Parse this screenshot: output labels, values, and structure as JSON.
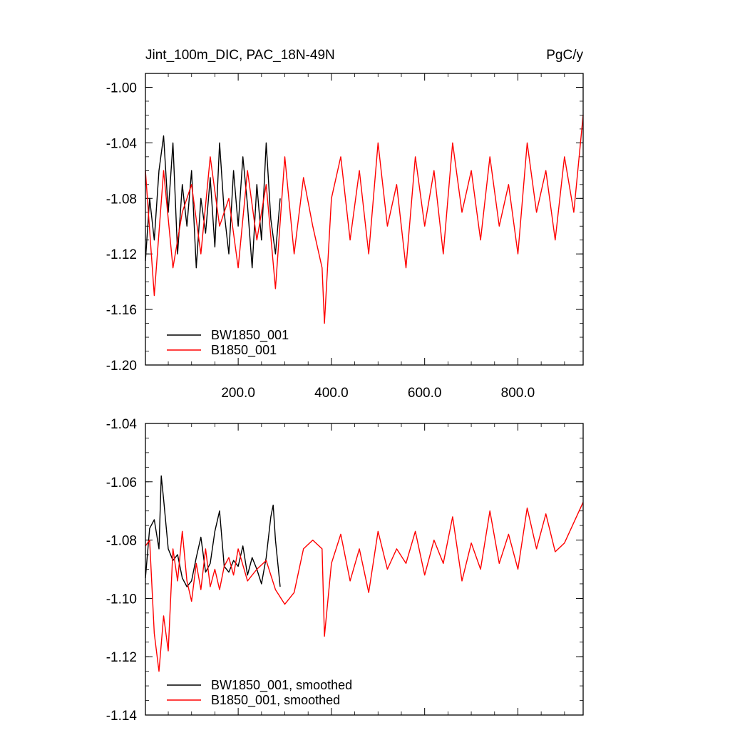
{
  "chart_data": [
    {
      "type": "line",
      "title_left": "Jint_100m_DIC, PAC_18N-49N",
      "title_right": "PgC/y",
      "xlabel": "",
      "ylabel": "",
      "xlim": [
        1,
        940
      ],
      "ylim": [
        -1.2,
        -0.99
      ],
      "x_ticks": [
        200,
        400,
        600,
        800
      ],
      "x_tick_labels": [
        "200.0",
        "400.0",
        "600.0",
        "800.0"
      ],
      "y_ticks": [
        -1.2,
        -1.16,
        -1.12,
        -1.08,
        -1.04,
        -1.0
      ],
      "y_tick_labels": [
        "-1.20",
        "-1.16",
        "-1.12",
        "-1.08",
        "-1.04",
        "-1.00"
      ],
      "legend_position": "bottom-left",
      "series": [
        {
          "name": "BW1850_001",
          "color": "#000000",
          "x": [
            1,
            10,
            20,
            30,
            40,
            50,
            60,
            70,
            80,
            90,
            100,
            110,
            120,
            130,
            140,
            150,
            160,
            170,
            180,
            190,
            200,
            210,
            220,
            230,
            240,
            250,
            260,
            270,
            280,
            290
          ],
          "values": [
            -1.125,
            -1.08,
            -1.11,
            -1.06,
            -1.035,
            -1.09,
            -1.04,
            -1.12,
            -1.07,
            -1.1,
            -1.06,
            -1.13,
            -1.08,
            -1.105,
            -1.065,
            -1.115,
            -1.04,
            -1.09,
            -1.12,
            -1.06,
            -1.1,
            -1.05,
            -1.085,
            -1.13,
            -1.07,
            -1.11,
            -1.04,
            -1.095,
            -1.12,
            -1.08
          ]
        },
        {
          "name": "B1850_001",
          "color": "#ff0000",
          "x": [
            1,
            20,
            40,
            60,
            80,
            100,
            120,
            140,
            160,
            180,
            200,
            220,
            240,
            260,
            280,
            300,
            320,
            340,
            360,
            380,
            385,
            400,
            420,
            440,
            460,
            480,
            500,
            520,
            540,
            560,
            580,
            600,
            620,
            640,
            660,
            680,
            700,
            720,
            740,
            760,
            780,
            800,
            820,
            840,
            860,
            880,
            900,
            920,
            940
          ],
          "values": [
            -1.06,
            -1.15,
            -1.06,
            -1.13,
            -1.09,
            -1.07,
            -1.12,
            -1.05,
            -1.1,
            -1.08,
            -1.13,
            -1.06,
            -1.11,
            -1.07,
            -1.145,
            -1.05,
            -1.12,
            -1.065,
            -1.1,
            -1.13,
            -1.17,
            -1.08,
            -1.05,
            -1.11,
            -1.06,
            -1.12,
            -1.04,
            -1.1,
            -1.07,
            -1.13,
            -1.05,
            -1.1,
            -1.06,
            -1.12,
            -1.04,
            -1.09,
            -1.06,
            -1.11,
            -1.05,
            -1.1,
            -1.07,
            -1.12,
            -1.04,
            -1.09,
            -1.06,
            -1.11,
            -1.05,
            -1.09,
            -1.02
          ]
        }
      ]
    },
    {
      "type": "line",
      "xlabel": "",
      "ylabel": "",
      "xlim": [
        1,
        940
      ],
      "ylim": [
        -1.14,
        -1.04
      ],
      "x_ticks": [
        200,
        400,
        600,
        800
      ],
      "y_ticks": [
        -1.14,
        -1.12,
        -1.1,
        -1.08,
        -1.06,
        -1.04
      ],
      "y_tick_labels": [
        "-1.14",
        "-1.12",
        "-1.10",
        "-1.08",
        "-1.06",
        "-1.04"
      ],
      "legend_position": "bottom-left",
      "series": [
        {
          "name": "BW1850_001, smoothed",
          "color": "#000000",
          "x": [
            1,
            10,
            20,
            30,
            35,
            40,
            50,
            60,
            70,
            80,
            90,
            100,
            110,
            120,
            130,
            140,
            150,
            160,
            170,
            180,
            190,
            200,
            210,
            220,
            230,
            240,
            250,
            260,
            270,
            275,
            280,
            290
          ],
          "values": [
            -1.093,
            -1.076,
            -1.073,
            -1.083,
            -1.058,
            -1.066,
            -1.083,
            -1.087,
            -1.085,
            -1.093,
            -1.096,
            -1.094,
            -1.086,
            -1.079,
            -1.091,
            -1.088,
            -1.077,
            -1.07,
            -1.089,
            -1.091,
            -1.087,
            -1.089,
            -1.082,
            -1.092,
            -1.086,
            -1.09,
            -1.095,
            -1.086,
            -1.072,
            -1.068,
            -1.08,
            -1.096
          ]
        },
        {
          "name": "B1850_001, smoothed",
          "color": "#ff0000",
          "x": [
            1,
            10,
            20,
            30,
            40,
            50,
            60,
            70,
            80,
            90,
            100,
            110,
            120,
            130,
            140,
            150,
            160,
            170,
            180,
            190,
            200,
            220,
            240,
            260,
            280,
            300,
            320,
            340,
            360,
            380,
            385,
            400,
            420,
            440,
            460,
            480,
            500,
            520,
            540,
            560,
            580,
            600,
            620,
            640,
            660,
            680,
            700,
            720,
            740,
            760,
            780,
            800,
            820,
            840,
            860,
            880,
            900,
            920,
            940
          ],
          "values": [
            -1.082,
            -1.08,
            -1.112,
            -1.125,
            -1.106,
            -1.118,
            -1.083,
            -1.094,
            -1.077,
            -1.094,
            -1.101,
            -1.088,
            -1.097,
            -1.083,
            -1.096,
            -1.09,
            -1.097,
            -1.089,
            -1.086,
            -1.092,
            -1.083,
            -1.094,
            -1.09,
            -1.087,
            -1.097,
            -1.102,
            -1.098,
            -1.083,
            -1.08,
            -1.083,
            -1.113,
            -1.088,
            -1.078,
            -1.094,
            -1.083,
            -1.098,
            -1.077,
            -1.09,
            -1.083,
            -1.088,
            -1.077,
            -1.092,
            -1.08,
            -1.088,
            -1.072,
            -1.094,
            -1.081,
            -1.09,
            -1.07,
            -1.088,
            -1.078,
            -1.09,
            -1.069,
            -1.083,
            -1.071,
            -1.084,
            -1.081,
            -1.074,
            -1.067
          ]
        }
      ]
    }
  ]
}
